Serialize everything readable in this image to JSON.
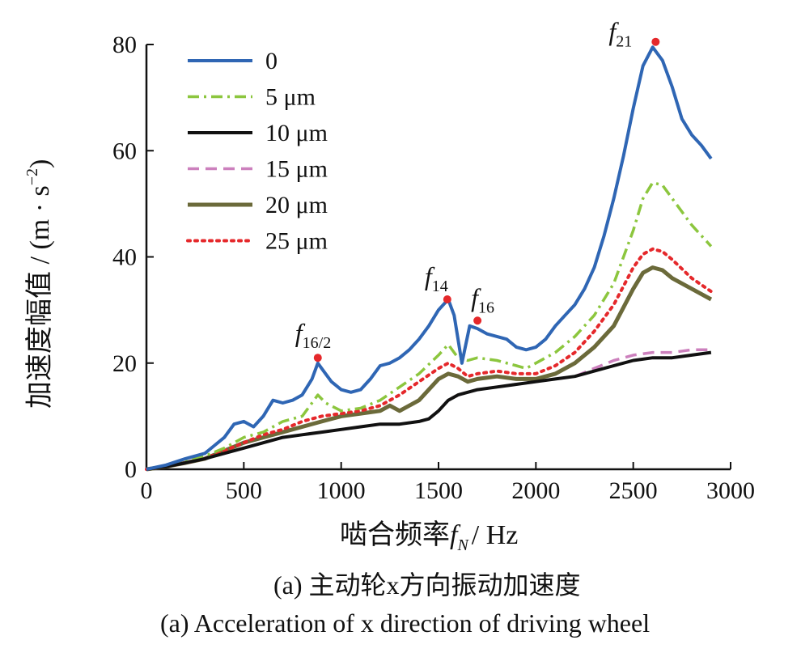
{
  "chart_data": {
    "type": "line",
    "xlabel": "啮合频率",
    "xlabel_symbol": "f",
    "xlabel_symbol_sub": "N",
    "xlabel_unit": "/ Hz",
    "ylabel": "加速度幅值 / (m · s",
    "ylabel_exp": "−2",
    "ylabel_close": ")",
    "xlim": [
      0,
      3000
    ],
    "ylim": [
      0,
      80
    ],
    "xticks": [
      "0",
      "500",
      "1000",
      "1500",
      "2000",
      "2500",
      "3000"
    ],
    "yticks": [
      "0",
      "20",
      "40",
      "60",
      "80"
    ],
    "grid": false,
    "legend_position": "top-left",
    "series": [
      {
        "name": "0",
        "color": "#2f66b4",
        "style": "solid",
        "x": [
          0,
          100,
          200,
          300,
          350,
          400,
          450,
          500,
          550,
          600,
          650,
          700,
          750,
          800,
          850,
          880,
          920,
          950,
          1000,
          1050,
          1100,
          1150,
          1200,
          1250,
          1300,
          1350,
          1400,
          1450,
          1500,
          1550,
          1580,
          1620,
          1660,
          1700,
          1750,
          1800,
          1850,
          1900,
          1950,
          2000,
          2050,
          2100,
          2150,
          2200,
          2250,
          2300,
          2350,
          2400,
          2450,
          2500,
          2550,
          2600,
          2650,
          2700,
          2750,
          2800,
          2850,
          2900
        ],
        "y": [
          0,
          0.8,
          2,
          3,
          4.5,
          6,
          8.5,
          9,
          8,
          10,
          13,
          12.5,
          13,
          14,
          17,
          20,
          18,
          16.5,
          15,
          14.5,
          15,
          17,
          19.5,
          20,
          21,
          22.5,
          24.5,
          27,
          30,
          32,
          29,
          20,
          27,
          26.5,
          25.5,
          25,
          24.5,
          23,
          22.5,
          23,
          24.5,
          27,
          29,
          31,
          34,
          38,
          44,
          51,
          59,
          68,
          76,
          79.5,
          77,
          72,
          66,
          63,
          61,
          58.5
        ]
      },
      {
        "name": "5 μm",
        "color": "#8cc63e",
        "style": "dashdot",
        "x": [
          0,
          100,
          200,
          300,
          400,
          500,
          600,
          700,
          800,
          850,
          880,
          920,
          1000,
          1100,
          1200,
          1300,
          1400,
          1500,
          1550,
          1600,
          1650,
          1700,
          1800,
          1900,
          1950,
          2000,
          2100,
          2200,
          2300,
          2400,
          2500,
          2550,
          2600,
          2650,
          2700,
          2800,
          2900
        ],
        "y": [
          0,
          0.6,
          1.5,
          2.5,
          4,
          6,
          7,
          9,
          10,
          12.5,
          14,
          12.5,
          11,
          11.5,
          13,
          15.5,
          18,
          21.5,
          23.5,
          21,
          20.5,
          21,
          20.5,
          19.5,
          19,
          20,
          22,
          25,
          29,
          35,
          45,
          51,
          54,
          53.5,
          51,
          46,
          42
        ]
      },
      {
        "name": "10 μm",
        "color": "#111111",
        "style": "solid",
        "x": [
          0,
          100,
          200,
          300,
          400,
          500,
          600,
          700,
          800,
          900,
          1000,
          1100,
          1200,
          1300,
          1400,
          1450,
          1500,
          1550,
          1600,
          1700,
          1800,
          1900,
          2000,
          2100,
          2200,
          2300,
          2400,
          2500,
          2600,
          2700,
          2800,
          2900
        ],
        "y": [
          0,
          0.5,
          1.2,
          2,
          3,
          4,
          5,
          6,
          6.5,
          7,
          7.5,
          8,
          8.5,
          8.5,
          9,
          9.5,
          11,
          13,
          14,
          15,
          15.5,
          16,
          16.5,
          17,
          17.5,
          18.5,
          19.5,
          20.5,
          21,
          21,
          21.5,
          22
        ]
      },
      {
        "name": "15 μm",
        "color": "#cc80bd",
        "style": "dashed",
        "x": [
          0,
          100,
          200,
          300,
          400,
          500,
          600,
          700,
          800,
          900,
          1000,
          1100,
          1200,
          1300,
          1400,
          1450,
          1500,
          1550,
          1600,
          1700,
          1800,
          1900,
          2000,
          2100,
          2200,
          2300,
          2400,
          2500,
          2600,
          2700,
          2800,
          2900
        ],
        "y": [
          0,
          0.5,
          1.2,
          2,
          3,
          4,
          5,
          6,
          6.5,
          7,
          7.5,
          8,
          8.5,
          8.5,
          9,
          9.5,
          11,
          13,
          14,
          15,
          15.5,
          16,
          16.5,
          17,
          17.5,
          19,
          20.5,
          21.5,
          22,
          22,
          22.5,
          22.5
        ]
      },
      {
        "name": "20 μm",
        "color": "#6b6a3a",
        "style": "solid",
        "x": [
          0,
          100,
          200,
          300,
          400,
          500,
          600,
          700,
          800,
          900,
          1000,
          1100,
          1200,
          1250,
          1300,
          1400,
          1500,
          1550,
          1600,
          1650,
          1700,
          1800,
          1900,
          2000,
          2100,
          2200,
          2300,
          2400,
          2500,
          2550,
          2600,
          2650,
          2700,
          2800,
          2900
        ],
        "y": [
          0,
          0.5,
          1.2,
          2,
          3.5,
          5,
          6,
          7,
          8,
          9,
          10,
          10.5,
          11,
          12,
          11,
          13,
          17,
          18,
          17.5,
          16.5,
          17,
          17.5,
          17,
          17,
          18,
          20,
          23,
          27,
          34,
          37,
          38,
          37.5,
          36,
          34,
          32
        ]
      },
      {
        "name": "25 μm",
        "color": "#e5282b",
        "style": "dotted",
        "x": [
          0,
          100,
          200,
          300,
          400,
          500,
          600,
          700,
          800,
          900,
          1000,
          1100,
          1200,
          1300,
          1400,
          1500,
          1550,
          1600,
          1650,
          1700,
          1800,
          1900,
          2000,
          2100,
          2200,
          2300,
          2400,
          2500,
          2550,
          2600,
          2650,
          2700,
          2800,
          2900
        ],
        "y": [
          0,
          0.5,
          1.2,
          2,
          3.5,
          5,
          6.5,
          7.5,
          9,
          10,
          10.5,
          11,
          12,
          14,
          16.5,
          19,
          20,
          19,
          17.5,
          18,
          18.5,
          18,
          18,
          19.5,
          22,
          26,
          31,
          38,
          40.5,
          41.5,
          41,
          39.5,
          36,
          33.5
        ]
      }
    ],
    "peaks": [
      {
        "label": "f",
        "sub": "16/2",
        "x": 880,
        "y": 21
      },
      {
        "label": "f",
        "sub": "14",
        "x": 1545,
        "y": 32
      },
      {
        "label": "f",
        "sub": "16",
        "x": 1700,
        "y": 28
      },
      {
        "label": "f",
        "sub": "21",
        "x": 2615,
        "y": 80.5
      }
    ],
    "peak_marker_color": "#e5282b"
  },
  "captions": {
    "zh": "(a) 主动轮x方向振动加速度",
    "en": "(a) Acceleration of x direction of driving wheel"
  }
}
